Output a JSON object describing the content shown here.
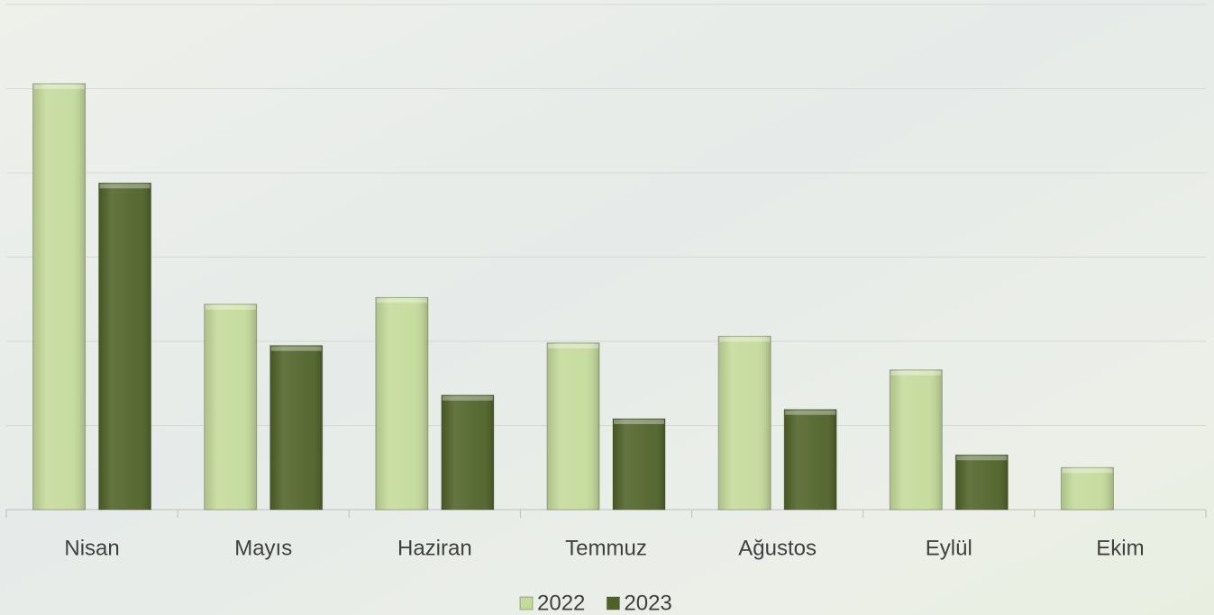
{
  "chart_data": {
    "type": "bar",
    "categories": [
      "Nisan",
      "Mayıs",
      "Haziran",
      "Temmuz",
      "Ağustos",
      "Eylül",
      "Ekim"
    ],
    "series": [
      {
        "name": "2022",
        "color": "#c4da9a",
        "values": [
          5.06,
          2.44,
          2.52,
          1.98,
          2.06,
          1.66,
          0.5
        ]
      },
      {
        "name": "2023",
        "color": "#4f6228",
        "values": [
          3.88,
          1.95,
          1.36,
          1.08,
          1.19,
          0.65,
          null
        ]
      }
    ],
    "ylim": [
      0,
      6
    ],
    "yticks": [
      0,
      1,
      2,
      3,
      4,
      5,
      6
    ],
    "grid": true,
    "legend": "bottom"
  }
}
